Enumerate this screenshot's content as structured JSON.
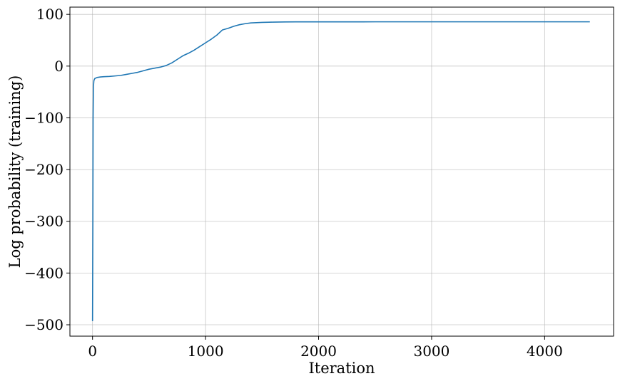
{
  "chart_data": {
    "type": "line",
    "title": "",
    "xlabel": "Iteration",
    "ylabel": "Log probability (training)",
    "xlim": [
      -200,
      4610
    ],
    "ylim": [
      -522,
      114
    ],
    "xticks": [
      0,
      1000,
      2000,
      3000,
      4000
    ],
    "yticks": [
      -500,
      -400,
      -300,
      -200,
      -100,
      0,
      100
    ],
    "xtick_labels": [
      "0",
      "1000",
      "2000",
      "3000",
      "4000"
    ],
    "ytick_labels": [
      "−500",
      "−400",
      "−300",
      "−200",
      "−100",
      "0",
      "100"
    ],
    "grid": true,
    "line_color": "#1f77b4",
    "series": [
      {
        "x": [
          0,
          3,
          5,
          8,
          12,
          20,
          40,
          70,
          100,
          150,
          200,
          250,
          300,
          350,
          400,
          450,
          500,
          550,
          600,
          650,
          700,
          750,
          800,
          850,
          900,
          950,
          1000,
          1050,
          1100,
          1150,
          1200,
          1250,
          1300,
          1350,
          1400,
          1500,
          1600,
          1700,
          1800,
          2000,
          2500,
          3000,
          3500,
          4000,
          4400
        ],
        "y": [
          -493,
          -300,
          -100,
          -40,
          -28,
          -24,
          -22,
          -21,
          -20.5,
          -20,
          -19,
          -18,
          -16,
          -14,
          -12,
          -9,
          -6,
          -4,
          -2,
          1,
          6,
          13,
          20,
          25,
          31,
          38,
          45,
          52,
          60,
          70,
          73,
          77,
          80,
          82,
          83.5,
          84.5,
          85,
          85.3,
          85.5,
          85.5,
          85.6,
          85.6,
          85.6,
          85.6,
          85.6
        ]
      }
    ]
  }
}
